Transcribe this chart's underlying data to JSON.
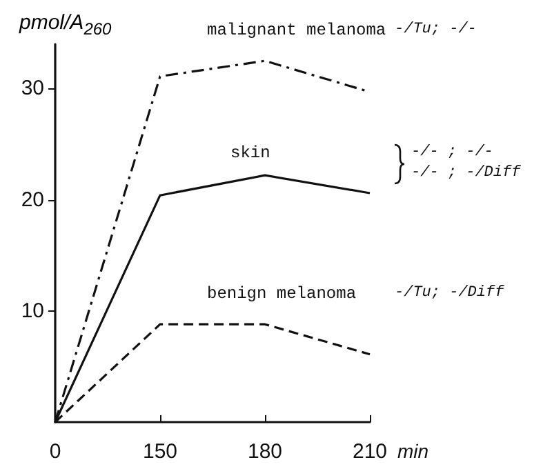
{
  "chart_data": {
    "type": "line",
    "ylabel": "pmol/A$_{260}$",
    "xlabel": "min",
    "categories": [
      "0",
      "150",
      "180",
      "210"
    ],
    "series": [
      {
        "name": "malignant melanoma",
        "color": "#111111",
        "line_style": "dashdot",
        "values": [
          0,
          31.1,
          32.5,
          29.7
        ]
      },
      {
        "name": "skin",
        "color": "#111111",
        "line_style": "solid",
        "values": [
          0,
          20.4,
          22.2,
          20.6
        ]
      },
      {
        "name": "benign melanoma",
        "color": "#111111",
        "line_style": "dashed",
        "values": [
          0,
          8.8,
          8.8,
          6.1
        ]
      }
    ],
    "annotations": [
      "-/Tu; -/-",
      "-/- ; -/-",
      "-/- ; -/Diff",
      "-/Tu; -/Diff"
    ],
    "ylim": [
      0,
      34
    ],
    "yticks": [
      10,
      20,
      30
    ],
    "grid": false,
    "legend": false,
    "marker": "none"
  }
}
